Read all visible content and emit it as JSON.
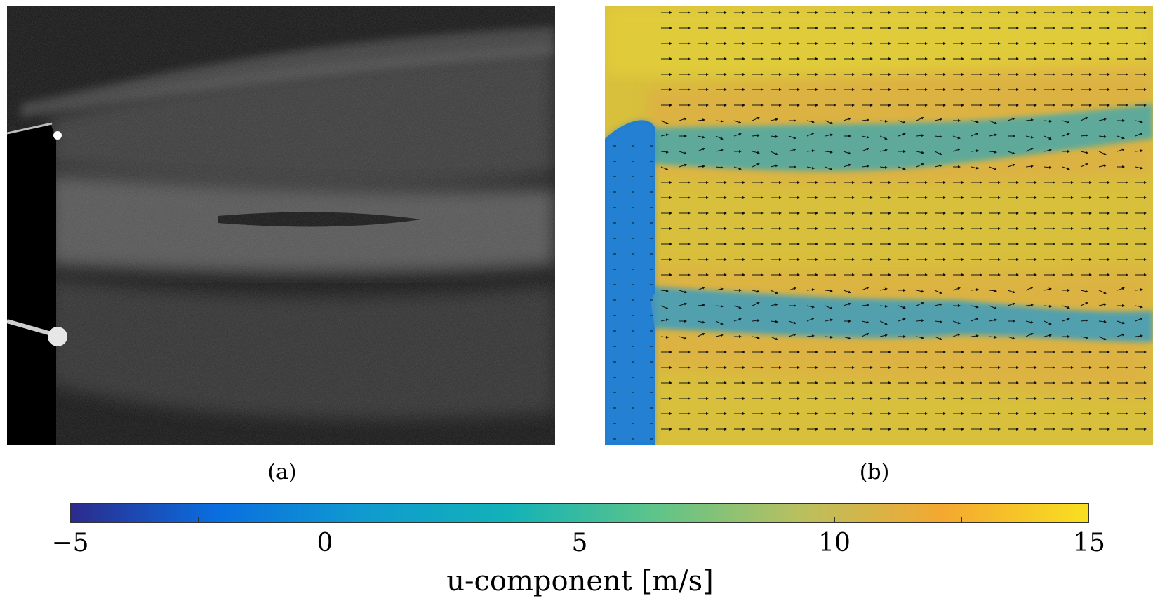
{
  "panels": {
    "a": {
      "caption": "(a)",
      "content": "grayscale flow-visualization photograph"
    },
    "b": {
      "caption": "(b)",
      "content": "u-velocity colormap with vector arrows"
    }
  },
  "colorbar": {
    "label": "u-component [m/s]",
    "min": -5,
    "max": 15,
    "ticks": [
      "−5",
      "0",
      "5",
      "10",
      "15"
    ],
    "tick_values": [
      -5,
      0,
      5,
      10,
      15
    ],
    "colormap": [
      "#2c2a8c",
      "#0a6ee0",
      "#109ad0",
      "#12b2b8",
      "#5cc48a",
      "#b8c060",
      "#f4a830",
      "#f8e020"
    ]
  },
  "colors": {
    "flow_bg": "#d9c040",
    "wake_blue": "#2a8ec8",
    "wake_teal": "#4aa8a8",
    "body_blue": "#1e7ad0"
  }
}
